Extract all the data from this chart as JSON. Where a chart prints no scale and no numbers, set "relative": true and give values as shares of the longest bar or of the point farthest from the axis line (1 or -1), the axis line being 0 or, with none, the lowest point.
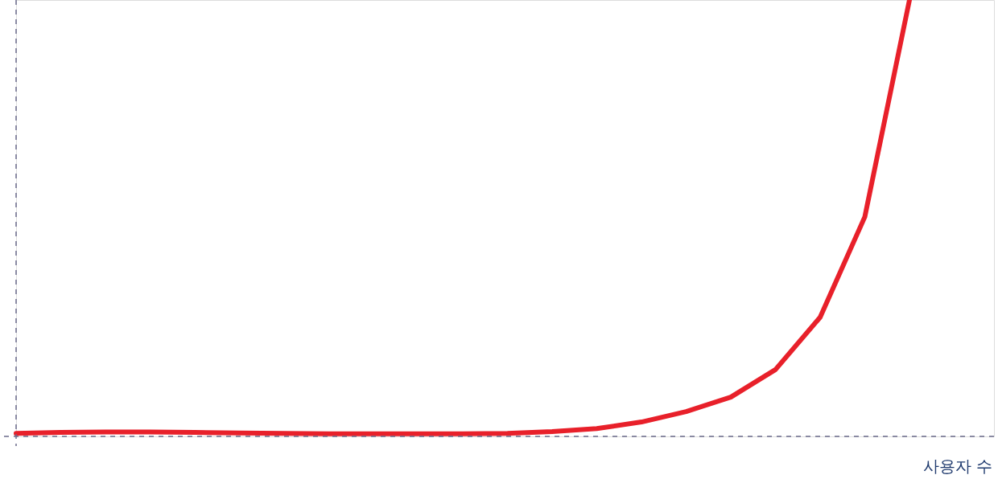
{
  "chart_data": {
    "type": "line",
    "xlabel": "사용자 수",
    "relative": true,
    "color": "#e8202a",
    "line_style": "solid",
    "categories": [
      null,
      null,
      null,
      null,
      null,
      null,
      null,
      null,
      null,
      null,
      null,
      null,
      null,
      null,
      null,
      null,
      null,
      null,
      null,
      null,
      null
    ],
    "values": [
      0.007,
      0.009,
      0.01,
      0.01,
      0.009,
      0.008,
      0.007,
      0.006,
      0.006,
      0.006,
      0.006,
      0.007,
      0.011,
      0.018,
      0.033,
      0.057,
      0.09,
      0.153,
      0.273,
      0.503,
      1
    ]
  }
}
